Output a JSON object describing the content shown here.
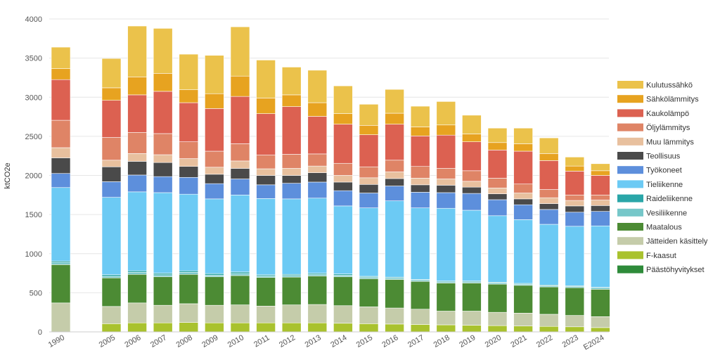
{
  "chart_data": {
    "type": "bar",
    "stacked": true,
    "ylabel": "ktCO2e",
    "ylim": [
      0,
      4000
    ],
    "yticks": [
      0,
      500,
      1000,
      1500,
      2000,
      2500,
      3000,
      3500,
      4000
    ],
    "legend_position": "right",
    "grid": true,
    "categories": [
      "1990",
      "2005",
      "2006",
      "2007",
      "2008",
      "2009",
      "2010",
      "2011",
      "2012",
      "2013",
      "2014",
      "2015",
      "2016",
      "2017",
      "2018",
      "2019",
      "2020",
      "2021",
      "2022",
      "2023",
      "E2024"
    ],
    "series": [
      {
        "name": "Päästöhyvitykset",
        "color": "#2e8b3a",
        "values": [
          0,
          0,
          0,
          0,
          0,
          0,
          0,
          0,
          0,
          0,
          0,
          0,
          0,
          0,
          0,
          0,
          0,
          0,
          0,
          0,
          0
        ]
      },
      {
        "name": "F-kaasut",
        "color": "#a9c22e",
        "values": [
          0,
          105,
          115,
          115,
          120,
          115,
          115,
          115,
          115,
          115,
          110,
          105,
          100,
          95,
          90,
          85,
          80,
          75,
          70,
          65,
          55
        ]
      },
      {
        "name": "Jätteiden käsittely",
        "color": "#c5ccaa",
        "values": [
          370,
          220,
          255,
          225,
          240,
          225,
          230,
          215,
          230,
          235,
          225,
          215,
          205,
          195,
          175,
          180,
          170,
          165,
          155,
          145,
          140
        ]
      },
      {
        "name": "Maatalous",
        "color": "#4c8b34",
        "values": [
          490,
          365,
          365,
          365,
          375,
          365,
          375,
          365,
          355,
          365,
          370,
          360,
          365,
          355,
          360,
          360,
          360,
          355,
          350,
          355,
          350
        ]
      },
      {
        "name": "Vesiliikenne",
        "color": "#76c7c9",
        "values": [
          25,
          20,
          25,
          25,
          25,
          20,
          25,
          20,
          20,
          20,
          20,
          20,
          20,
          15,
          15,
          15,
          15,
          15,
          15,
          15,
          15
        ]
      },
      {
        "name": "Raideliikenne",
        "color": "#2aa6a8",
        "values": [
          20,
          20,
          20,
          20,
          20,
          20,
          20,
          15,
          15,
          15,
          15,
          10,
          10,
          10,
          10,
          10,
          10,
          10,
          10,
          10,
          10
        ]
      },
      {
        "name": "Tieliikenne",
        "color": "#6ccaf4",
        "values": [
          940,
          990,
          1010,
          1030,
          980,
          955,
          985,
          975,
          965,
          960,
          870,
          875,
          975,
          915,
          930,
          905,
          850,
          815,
          775,
          760,
          785
        ]
      },
      {
        "name": "Työkoneet",
        "color": "#5d8fdc",
        "values": [
          180,
          200,
          215,
          205,
          215,
          195,
          205,
          175,
          200,
          205,
          195,
          190,
          190,
          200,
          200,
          215,
          205,
          190,
          190,
          180,
          185
        ]
      },
      {
        "name": "Teollisuus",
        "color": "#4a4a4a",
        "values": [
          200,
          190,
          175,
          180,
          140,
          120,
          135,
          120,
          100,
          120,
          110,
          110,
          95,
          95,
          95,
          80,
          75,
          75,
          75,
          80,
          75
        ]
      },
      {
        "name": "Muu lämmitys",
        "color": "#e8c09e",
        "values": [
          130,
          85,
          100,
          100,
          100,
          90,
          95,
          85,
          90,
          85,
          85,
          85,
          85,
          85,
          80,
          75,
          75,
          75,
          75,
          70,
          70
        ]
      },
      {
        "name": "Öljylämmitys",
        "color": "#df8466",
        "values": [
          350,
          290,
          270,
          270,
          215,
          205,
          220,
          175,
          180,
          155,
          155,
          140,
          150,
          150,
          135,
          135,
          125,
          115,
          105,
          70,
          65
        ]
      },
      {
        "name": "Kaukolämpö",
        "color": "#dc6151",
        "values": [
          520,
          475,
          480,
          540,
          500,
          545,
          605,
          530,
          610,
          480,
          500,
          410,
          460,
          390,
          425,
          370,
          360,
          420,
          370,
          305,
          250
        ]
      },
      {
        "name": "Sähkölämmitys",
        "color": "#e7a320",
        "values": [
          140,
          160,
          230,
          230,
          165,
          190,
          260,
          200,
          150,
          175,
          135,
          120,
          140,
          115,
          130,
          100,
          95,
          95,
          90,
          65,
          60
        ]
      },
      {
        "name": "Kulutussähkö",
        "color": "#ebc24b",
        "values": [
          275,
          375,
          650,
          575,
          455,
          490,
          630,
          485,
          355,
          415,
          355,
          270,
          305,
          265,
          300,
          240,
          185,
          200,
          200,
          115,
          90
        ]
      }
    ]
  }
}
